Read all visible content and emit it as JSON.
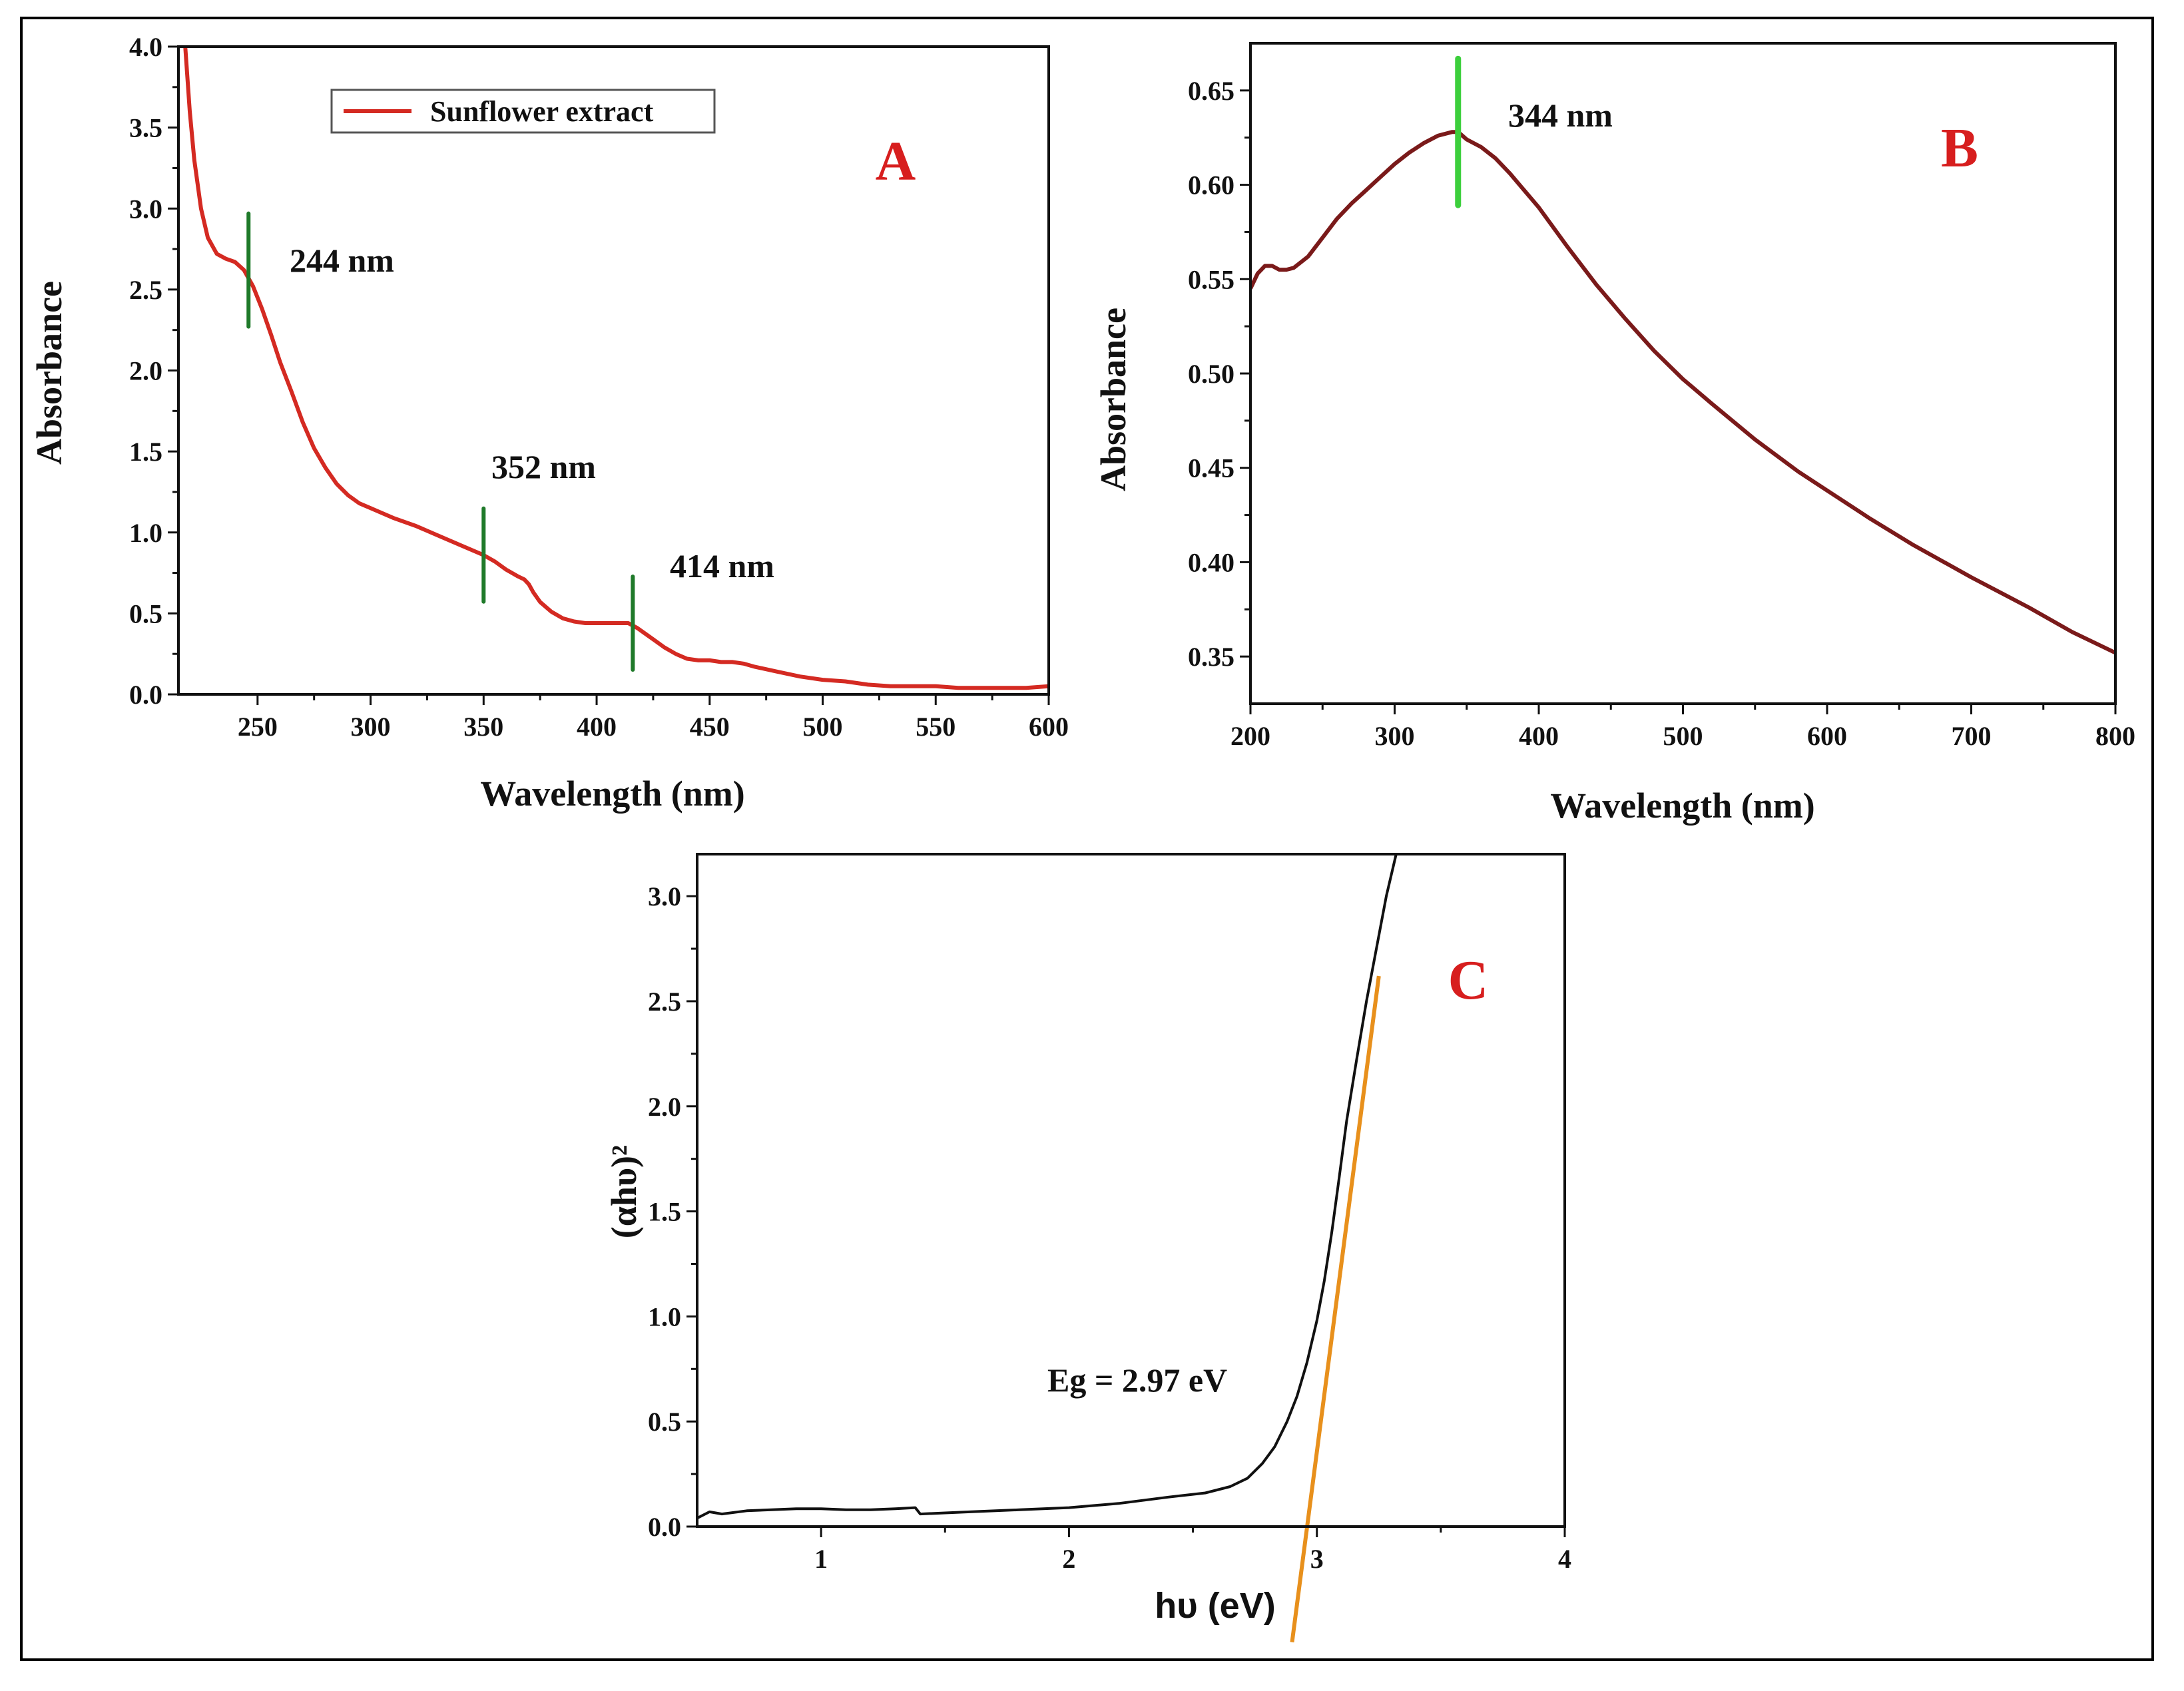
{
  "chart_data": [
    {
      "id": "A",
      "type": "line",
      "panel_label": "A",
      "xlabel": "Wavelength (nm)",
      "ylabel": "Absorbance",
      "xlim": [
        215,
        600
      ],
      "ylim": [
        0,
        4.0
      ],
      "xticks": [
        250,
        300,
        350,
        400,
        450,
        500,
        550,
        600
      ],
      "yticks": [
        0.0,
        0.5,
        1.0,
        1.5,
        2.0,
        2.5,
        3.0,
        3.5,
        4.0
      ],
      "xtick_labels": [
        "250",
        "300",
        "350",
        "400",
        "450",
        "500",
        "550",
        "600"
      ],
      "ytick_labels": [
        "0.0",
        "0.5",
        "1.0",
        "1.5",
        "2.0",
        "2.5",
        "3.0",
        "3.5",
        "4.0"
      ],
      "legend": [
        "Sunflower extract"
      ],
      "series": [
        {
          "name": "Sunflower extract",
          "color": "#d42a22",
          "x": [
            218,
            220,
            222,
            225,
            228,
            232,
            236,
            240,
            244,
            248,
            252,
            256,
            260,
            265,
            270,
            275,
            280,
            285,
            290,
            295,
            300,
            310,
            320,
            330,
            340,
            350,
            355,
            360,
            365,
            368,
            370,
            372,
            375,
            380,
            385,
            390,
            395,
            400,
            405,
            410,
            414,
            418,
            422,
            426,
            430,
            435,
            440,
            445,
            450,
            455,
            460,
            465,
            470,
            480,
            490,
            500,
            510,
            520,
            530,
            540,
            550,
            560,
            570,
            580,
            590,
            600
          ],
          "y": [
            4.0,
            3.6,
            3.3,
            3.0,
            2.82,
            2.72,
            2.69,
            2.67,
            2.62,
            2.52,
            2.38,
            2.22,
            2.05,
            1.87,
            1.68,
            1.52,
            1.4,
            1.3,
            1.23,
            1.18,
            1.15,
            1.09,
            1.04,
            0.98,
            0.92,
            0.86,
            0.82,
            0.77,
            0.73,
            0.71,
            0.68,
            0.63,
            0.57,
            0.51,
            0.47,
            0.45,
            0.44,
            0.44,
            0.44,
            0.44,
            0.44,
            0.41,
            0.37,
            0.33,
            0.29,
            0.25,
            0.22,
            0.21,
            0.21,
            0.2,
            0.2,
            0.19,
            0.17,
            0.14,
            0.11,
            0.09,
            0.08,
            0.06,
            0.05,
            0.05,
            0.05,
            0.04,
            0.04,
            0.04,
            0.04,
            0.05
          ]
        }
      ],
      "markers": [
        {
          "x": 246,
          "y": 2.62,
          "label": "244 nm"
        },
        {
          "x": 350,
          "y": 0.86,
          "label": "352 nm"
        },
        {
          "x": 416,
          "y": 0.44,
          "label": "414 nm"
        }
      ]
    },
    {
      "id": "B",
      "type": "line",
      "panel_label": "B",
      "xlabel": "Wavelength (nm)",
      "ylabel": "Absorbance",
      "xlim": [
        200,
        800
      ],
      "ylim": [
        0.325,
        0.675
      ],
      "xticks": [
        200,
        300,
        400,
        500,
        600,
        700,
        800
      ],
      "yticks": [
        0.35,
        0.4,
        0.45,
        0.5,
        0.55,
        0.6,
        0.65
      ],
      "xtick_labels": [
        "200",
        "300",
        "400",
        "500",
        "600",
        "700",
        "800"
      ],
      "ytick_labels": [
        "0.35",
        "0.40",
        "0.45",
        "0.50",
        "0.55",
        "0.60",
        "0.65"
      ],
      "series": [
        {
          "name": "Absorbance",
          "color": "#7a1a1a",
          "x": [
            200,
            205,
            210,
            215,
            220,
            225,
            230,
            240,
            250,
            260,
            270,
            280,
            290,
            300,
            310,
            320,
            330,
            340,
            344,
            350,
            360,
            370,
            380,
            390,
            400,
            420,
            440,
            460,
            480,
            500,
            520,
            550,
            580,
            600,
            630,
            660,
            700,
            740,
            770,
            800
          ],
          "y": [
            0.545,
            0.553,
            0.557,
            0.557,
            0.555,
            0.555,
            0.556,
            0.562,
            0.572,
            0.582,
            0.59,
            0.597,
            0.604,
            0.611,
            0.617,
            0.622,
            0.626,
            0.628,
            0.628,
            0.624,
            0.62,
            0.614,
            0.606,
            0.597,
            0.588,
            0.567,
            0.547,
            0.529,
            0.512,
            0.497,
            0.484,
            0.465,
            0.448,
            0.438,
            0.423,
            0.409,
            0.392,
            0.376,
            0.363,
            0.352
          ]
        }
      ],
      "markers": [
        {
          "x": 344,
          "y": 0.628,
          "label": "344 nm"
        }
      ]
    },
    {
      "id": "C",
      "type": "line",
      "panel_label": "C",
      "xlabel": "hυ (eV)",
      "ylabel": "(αhυ)²",
      "xlim": [
        0.5,
        4.0
      ],
      "ylim": [
        0,
        3.2
      ],
      "xticks": [
        1,
        2,
        3,
        4
      ],
      "yticks": [
        0.0,
        0.5,
        1.0,
        1.5,
        2.0,
        2.5,
        3.0
      ],
      "xtick_labels": [
        "1",
        "2",
        "3",
        "4"
      ],
      "ytick_labels": [
        "0.0",
        "0.5",
        "1.0",
        "1.5",
        "2.0",
        "2.5",
        "3.0"
      ],
      "annotation": "Eg = 2.97 eV",
      "series": [
        {
          "name": "(αhυ)²",
          "color": "#111111",
          "x": [
            0.5,
            0.55,
            0.6,
            0.7,
            0.8,
            0.9,
            1.0,
            1.1,
            1.2,
            1.3,
            1.38,
            1.4,
            1.5,
            1.6,
            1.8,
            2.0,
            2.2,
            2.4,
            2.55,
            2.65,
            2.72,
            2.78,
            2.83,
            2.88,
            2.92,
            2.96,
            3.0,
            3.03,
            3.06,
            3.09,
            3.12,
            3.16,
            3.2,
            3.24,
            3.28,
            3.32
          ],
          "y": [
            0.04,
            0.07,
            0.06,
            0.075,
            0.08,
            0.085,
            0.085,
            0.08,
            0.08,
            0.085,
            0.09,
            0.06,
            0.065,
            0.07,
            0.08,
            0.09,
            0.11,
            0.14,
            0.16,
            0.19,
            0.23,
            0.3,
            0.38,
            0.5,
            0.62,
            0.78,
            0.98,
            1.17,
            1.4,
            1.66,
            1.93,
            2.22,
            2.5,
            2.75,
            3.0,
            3.2
          ]
        }
      ],
      "tangent": {
        "color": "#e8901c",
        "x": [
          2.9,
          3.25
        ],
        "y": [
          -0.55,
          2.62
        ]
      }
    }
  ]
}
